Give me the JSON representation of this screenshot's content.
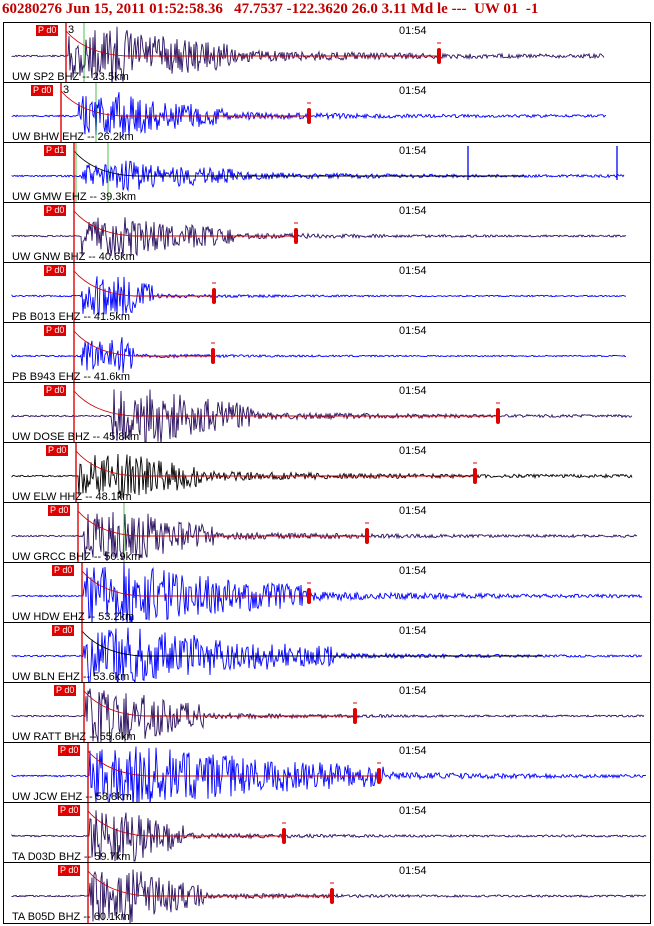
{
  "header": {
    "text": "60280276 Jun 15, 2011 01:52:58.36   47.7537 -122.3620 26.0 3.11 Md le ---  UW 01  -1"
  },
  "colors": {
    "header_text": "#c00000",
    "blue": "#0000ff",
    "dark": "#2a1060",
    "black": "#000000",
    "pick": "#e00000",
    "coda": "#cc0000",
    "theory": "#00aa00"
  },
  "time_label": "01:54",
  "traces": [
    {
      "label": "UW SP2 BHZ -- 23.5km",
      "pick": "P d0",
      "pick_extra": "3",
      "color": "dark"
    },
    {
      "label": "UW BHW EHZ -- 26.2km",
      "pick": "P d0",
      "pick_extra": "3",
      "color": "blue"
    },
    {
      "label": "UW GMW EHZ -- 39.3km",
      "pick": "P d1",
      "pick_extra": "",
      "color": "blue"
    },
    {
      "label": "UW GNW BHZ -- 40.6km",
      "pick": "P d0",
      "pick_extra": "",
      "color": "dark"
    },
    {
      "label": "PB B013 EHZ -- 41.5km",
      "pick": "P d0",
      "pick_extra": "",
      "color": "blue"
    },
    {
      "label": "PB B943 EHZ -- 41.6km",
      "pick": "P d0",
      "pick_extra": "",
      "color": "blue"
    },
    {
      "label": "UW DOSE BHZ -- 45.8km",
      "pick": "P d0",
      "pick_extra": "",
      "color": "dark"
    },
    {
      "label": "UW ELW HHZ -- 48.1km",
      "pick": "P d0",
      "pick_extra": "",
      "color": "black"
    },
    {
      "label": "UW GRCC BHZ -- 50.9km",
      "pick": "P d0",
      "pick_extra": "",
      "color": "dark"
    },
    {
      "label": "UW HDW EHZ -- 53.2km",
      "pick": "P d0",
      "pick_extra": "",
      "color": "blue"
    },
    {
      "label": "UW BLN EHZ -- 53.6km",
      "pick": "P d0",
      "pick_extra": "",
      "color": "blue"
    },
    {
      "label": "UW RATT BHZ -- 55.6km",
      "pick": "P d0",
      "pick_extra": "",
      "color": "dark"
    },
    {
      "label": "UW JCW EHZ -- 58.8km",
      "pick": "P d0",
      "pick_extra": "",
      "color": "blue"
    },
    {
      "label": "TA D03D BHZ -- 59.7km",
      "pick": "P d0",
      "pick_extra": "",
      "color": "dark"
    },
    {
      "label": "TA B05D BHZ -- 60.1km",
      "pick": "P d0",
      "pick_extra": "",
      "color": "dark"
    }
  ]
}
